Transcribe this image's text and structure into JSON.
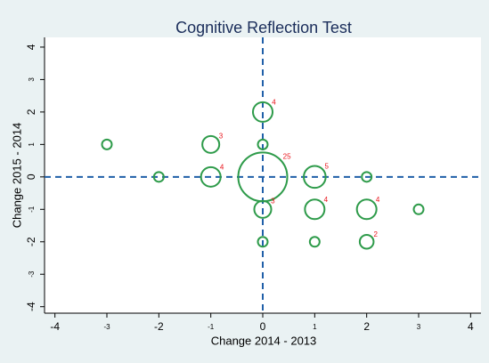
{
  "chart_data": {
    "type": "scatter",
    "title": "Cognitive Reflection Test",
    "x_label": "Change 2014 - 2013",
    "y_label": "Change 2015 - 2014",
    "x": [
      0,
      0,
      -1,
      0,
      -3,
      -2,
      -1,
      1,
      2,
      0,
      1,
      2,
      3,
      0,
      1,
      2
    ],
    "y": [
      0,
      2,
      1,
      1,
      1,
      0,
      0,
      0,
      0,
      -1,
      -1,
      -1,
      -1,
      -2,
      -2,
      -2
    ],
    "sizes": [
      25,
      4,
      3,
      1,
      1,
      1,
      4,
      5,
      1,
      3,
      4,
      4,
      1,
      1,
      1,
      2
    ],
    "color": "#2e9b4a",
    "label_color": "#e8141b",
    "xlim": [
      -4.2,
      4.2
    ],
    "ylim": [
      -4.2,
      4.3
    ],
    "xticks": [
      -4,
      -2,
      0,
      2,
      4
    ],
    "xticks_minor": [
      -3,
      -1,
      1,
      3
    ],
    "yticks": [
      -4,
      -2,
      0,
      2,
      4
    ],
    "yticks_minor": [
      -3,
      -1,
      1,
      3
    ],
    "xline": 0,
    "yline": 0,
    "refline_color": "#1f5fa8"
  }
}
